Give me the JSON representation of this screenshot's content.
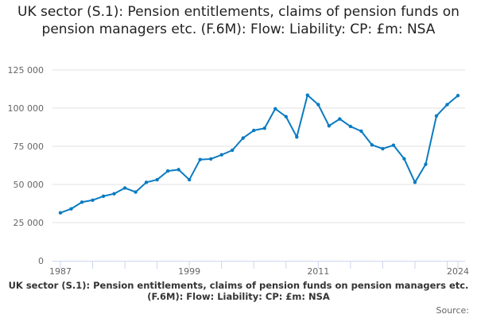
{
  "title": "UK sector (S.1): Pension entitlements, claims of pension funds on pension managers etc. (F.6M): Flow: Liability: CP: £m: NSA",
  "footer": {
    "series_label": "UK sector (S.1): Pension entitlements, claims of pension funds on pension managers etc. (F.6M): Flow: Liability: CP: £m: NSA",
    "source": "Source:"
  },
  "colors": {
    "line": "#0a7bc2",
    "grid": "#e0e0e0",
    "axis": "#ccd6eb"
  },
  "chart_data": {
    "type": "line",
    "title": "UK sector (S.1): Pension entitlements, claims of pension funds on pension managers etc. (F.6M): Flow: Liability: CP: £m: NSA",
    "xlabel": "",
    "ylabel": "",
    "x": [
      1987,
      1988,
      1989,
      1990,
      1991,
      1992,
      1993,
      1994,
      1995,
      1996,
      1997,
      1998,
      1999,
      2000,
      2001,
      2002,
      2003,
      2004,
      2005,
      2006,
      2007,
      2008,
      2009,
      2010,
      2011,
      2012,
      2013,
      2014,
      2015,
      2016,
      2017,
      2018,
      2019,
      2020,
      2021,
      2022,
      2023,
      2024
    ],
    "series": [
      {
        "name": "UK sector (S.1): Pension entitlements, claims of pension funds on pension managers etc. (F.6M): Flow: Liability: CP: £m: NSA",
        "values": [
          31400,
          34000,
          38400,
          39700,
          42300,
          43900,
          47700,
          45000,
          51400,
          53100,
          58800,
          59700,
          53100,
          66300,
          66700,
          69400,
          72400,
          80400,
          85400,
          86800,
          99600,
          94400,
          81100,
          108500,
          102300,
          88400,
          92900,
          88000,
          84900,
          75900,
          73400,
          75700,
          66800,
          51400,
          63200,
          94900,
          102300,
          108200
        ]
      }
    ],
    "xlim": [
      1987,
      2024
    ],
    "ylim": [
      0,
      125000
    ],
    "x_tick_labels": [
      "1987",
      "1999",
      "2011",
      "2024"
    ],
    "x_tick_label_values": [
      1987,
      1999,
      2011,
      2024
    ],
    "y_ticks": [
      0,
      25000,
      50000,
      75000,
      100000,
      125000
    ],
    "y_tick_labels": [
      "0",
      "25 000",
      "50 000",
      "75 000",
      "100 000",
      "125 000"
    ],
    "grid": true,
    "legend": "none"
  }
}
